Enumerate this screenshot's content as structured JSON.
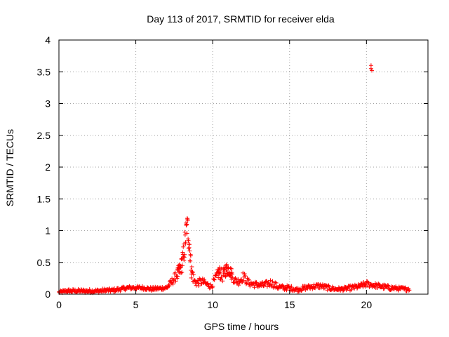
{
  "chart_data": {
    "type": "scatter",
    "title": "Day 113 of 2017, SRMTID for receiver elda",
    "xlabel": "GPS time / hours",
    "ylabel": "SRMTID / TECUs",
    "xlim": [
      0,
      24
    ],
    "ylim": [
      0,
      4
    ],
    "xticks": [
      0,
      5,
      10,
      15,
      20
    ],
    "yticks": [
      0,
      0.5,
      1,
      1.5,
      2,
      2.5,
      3,
      3.5,
      4
    ],
    "xtick_labels": [
      "0",
      "5",
      "10",
      "15",
      "20"
    ],
    "ytick_labels": [
      "0",
      "0.5",
      "1",
      "1.5",
      "2",
      "2.5",
      "3",
      "3.5",
      "4"
    ],
    "grid": true,
    "marker": "+",
    "color": "#ff0000",
    "series": [
      {
        "name": "SRMTID",
        "envelope": [
          [
            0.0,
            0.03,
            0.02
          ],
          [
            0.5,
            0.05,
            0.03
          ],
          [
            1.0,
            0.05,
            0.03
          ],
          [
            1.5,
            0.05,
            0.03
          ],
          [
            2.0,
            0.05,
            0.03
          ],
          [
            2.5,
            0.05,
            0.03
          ],
          [
            3.0,
            0.06,
            0.03
          ],
          [
            3.5,
            0.06,
            0.03
          ],
          [
            4.0,
            0.08,
            0.03
          ],
          [
            4.5,
            0.1,
            0.03
          ],
          [
            5.0,
            0.1,
            0.03
          ],
          [
            5.5,
            0.1,
            0.03
          ],
          [
            6.0,
            0.08,
            0.03
          ],
          [
            6.5,
            0.09,
            0.03
          ],
          [
            7.0,
            0.1,
            0.03
          ],
          [
            7.3,
            0.18,
            0.06
          ],
          [
            7.6,
            0.28,
            0.08
          ],
          [
            7.9,
            0.4,
            0.12
          ],
          [
            8.1,
            0.6,
            0.18
          ],
          [
            8.25,
            0.95,
            0.22
          ],
          [
            8.35,
            1.1,
            0.18
          ],
          [
            8.45,
            0.85,
            0.2
          ],
          [
            8.6,
            0.4,
            0.15
          ],
          [
            8.8,
            0.2,
            0.08
          ],
          [
            9.0,
            0.18,
            0.06
          ],
          [
            9.3,
            0.2,
            0.06
          ],
          [
            9.6,
            0.16,
            0.05
          ],
          [
            9.9,
            0.12,
            0.04
          ],
          [
            10.2,
            0.25,
            0.08
          ],
          [
            10.4,
            0.35,
            0.1
          ],
          [
            10.6,
            0.28,
            0.1
          ],
          [
            10.9,
            0.4,
            0.1
          ],
          [
            11.1,
            0.38,
            0.1
          ],
          [
            11.4,
            0.22,
            0.06
          ],
          [
            11.7,
            0.2,
            0.06
          ],
          [
            12.0,
            0.28,
            0.08
          ],
          [
            12.3,
            0.18,
            0.06
          ],
          [
            12.8,
            0.15,
            0.05
          ],
          [
            13.3,
            0.14,
            0.05
          ],
          [
            13.8,
            0.18,
            0.06
          ],
          [
            14.2,
            0.12,
            0.05
          ],
          [
            14.6,
            0.1,
            0.04
          ],
          [
            15.0,
            0.1,
            0.04
          ],
          [
            15.5,
            0.07,
            0.03
          ],
          [
            16.0,
            0.1,
            0.04
          ],
          [
            16.5,
            0.12,
            0.04
          ],
          [
            17.0,
            0.13,
            0.04
          ],
          [
            17.5,
            0.1,
            0.04
          ],
          [
            18.0,
            0.08,
            0.03
          ],
          [
            18.5,
            0.08,
            0.03
          ],
          [
            19.0,
            0.1,
            0.04
          ],
          [
            19.5,
            0.12,
            0.04
          ],
          [
            20.0,
            0.16,
            0.05
          ],
          [
            20.5,
            0.14,
            0.04
          ],
          [
            21.0,
            0.12,
            0.04
          ],
          [
            21.5,
            0.1,
            0.04
          ],
          [
            22.0,
            0.09,
            0.03
          ],
          [
            22.5,
            0.08,
            0.03
          ],
          [
            22.8,
            0.08,
            0.03
          ]
        ],
        "outliers": [
          [
            20.3,
            3.6
          ],
          [
            20.3,
            3.55
          ],
          [
            20.35,
            3.52
          ]
        ]
      }
    ]
  }
}
